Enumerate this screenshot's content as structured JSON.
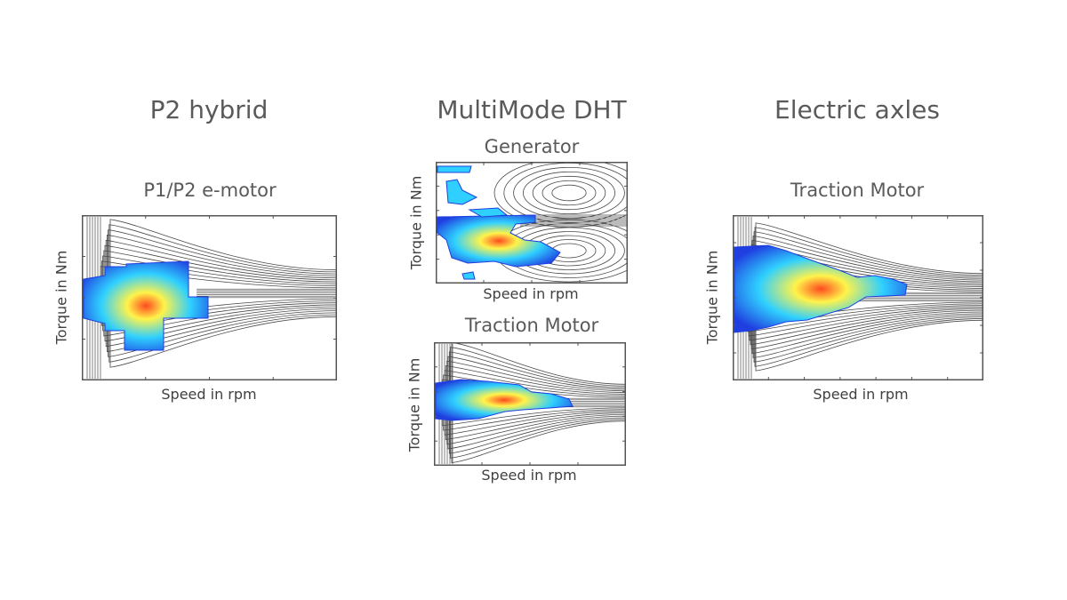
{
  "groups": [
    {
      "title": "P2 hybrid"
    },
    {
      "title": "MultiMode DHT"
    },
    {
      "title": "Electric axles"
    }
  ],
  "chart_data": [
    {
      "type": "heatmap",
      "group": "P2 hybrid",
      "title": "P1/P2 e-motor",
      "xlabel": "Speed in rpm",
      "ylabel": "Torque in Nm",
      "grid": false
    },
    {
      "type": "heatmap",
      "group": "MultiMode DHT",
      "title": "Generator",
      "xlabel": "Speed in rpm",
      "ylabel": "Torque in Nm",
      "grid": false
    },
    {
      "type": "heatmap",
      "group": "MultiMode DHT",
      "title": "Traction Motor",
      "xlabel": "Speed in rpm",
      "ylabel": "Torque in Nm",
      "grid": false
    },
    {
      "type": "heatmap",
      "group": "Electric axles",
      "title": "Traction Motor",
      "xlabel": "Speed in rpm",
      "ylabel": "Torque in Nm",
      "grid": false
    }
  ],
  "colors": {
    "frame": "#555555",
    "contour": "#4a4a4a",
    "low": "#1f3fe0",
    "mid": "#2fd0ff",
    "high": "#fff34a",
    "peak": "#ff4a1f"
  }
}
